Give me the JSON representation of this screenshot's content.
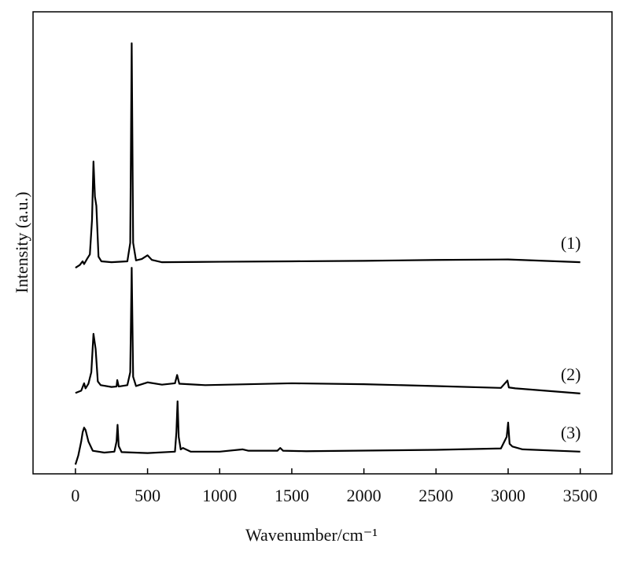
{
  "chart_data": {
    "type": "line",
    "x_label": "Wavenumber/cm⁻¹",
    "y_label": "Intensity (a.u.)",
    "xlim": [
      -294,
      3720
    ],
    "ylim": [
      0,
      100
    ],
    "xticks": [
      0,
      500,
      1000,
      1500,
      2000,
      2500,
      3000,
      3500
    ],
    "series": [
      {
        "name": "(1)",
        "color": "#000000",
        "x": [
          0,
          30,
          50,
          60,
          80,
          100,
          115,
          125,
          135,
          145,
          160,
          180,
          250,
          360,
          380,
          390,
          400,
          420,
          460,
          500,
          530,
          600,
          1000,
          1500,
          2000,
          2500,
          3000,
          3500
        ],
        "values": [
          44.6,
          45.2,
          46.0,
          45.4,
          46.5,
          47.5,
          55,
          67.6,
          60,
          58,
          47,
          46,
          45.8,
          46,
          50,
          93.2,
          50,
          46.2,
          46.5,
          47.3,
          46.3,
          45.8,
          45.9,
          46.0,
          46.1,
          46.3,
          46.4,
          45.8
        ]
      },
      {
        "name": "(2)",
        "color": "#000000",
        "x": [
          0,
          40,
          60,
          70,
          90,
          110,
          125,
          140,
          155,
          175,
          250,
          285,
          290,
          300,
          360,
          380,
          390,
          400,
          420,
          500,
          600,
          690,
          705,
          720,
          900,
          1500,
          2000,
          2500,
          2950,
          2995,
          3005,
          3050,
          3500
        ],
        "values": [
          17.5,
          18,
          19.6,
          18.5,
          19.5,
          22,
          30.3,
          27,
          20,
          19.2,
          18.8,
          18.9,
          20.3,
          18.9,
          19.2,
          22,
          44.6,
          21,
          19,
          19.8,
          19.3,
          19.6,
          21.4,
          19.5,
          19.2,
          19.6,
          19.4,
          19,
          18.6,
          20.2,
          18.7,
          18.5,
          17.4
        ]
      },
      {
        "name": "(3)",
        "color": "#000000",
        "x": [
          0,
          20,
          40,
          50,
          60,
          70,
          90,
          120,
          200,
          270,
          285,
          292,
          300,
          320,
          500,
          690,
          700,
          708,
          716,
          730,
          745,
          800,
          1000,
          1160,
          1200,
          1400,
          1420,
          1440,
          1600,
          2500,
          2950,
          2990,
          3000,
          3010,
          3030,
          3100,
          3500
        ],
        "values": [
          2,
          4,
          7,
          9,
          10,
          9.5,
          7,
          5,
          4.6,
          4.8,
          7,
          10.6,
          6,
          4.7,
          4.5,
          4.8,
          9,
          15.7,
          8,
          5.3,
          5.6,
          4.8,
          4.8,
          5.3,
          5,
          5,
          5.6,
          5,
          4.9,
          5.2,
          5.5,
          8,
          11.1,
          6.5,
          5.9,
          5.3,
          4.8
        ]
      }
    ]
  }
}
